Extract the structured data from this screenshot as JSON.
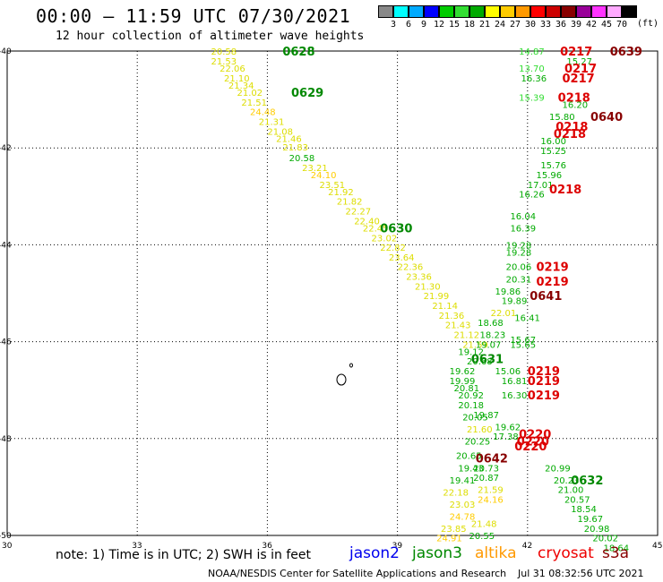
{
  "header": {
    "title": "00:00 – 11:59 UTC 07/30/2021",
    "subtitle": "12 hour collection of altimeter wave heights"
  },
  "colorbar": {
    "unit": "(ft)",
    "ticks": [
      "3",
      "6",
      "9",
      "12",
      "15",
      "18",
      "21",
      "24",
      "27",
      "30",
      "33",
      "36",
      "39",
      "42",
      "45",
      "70"
    ],
    "colors": [
      "#888888",
      "#00ffff",
      "#00aaff",
      "#0000ff",
      "#00cc00",
      "#33dd33",
      "#00aa00",
      "#ffff00",
      "#ffcc00",
      "#ff9900",
      "#ff0000",
      "#cc0000",
      "#880000",
      "#990099",
      "#ff33ff",
      "#ffaaff",
      "#000000"
    ]
  },
  "map": {
    "lon_range": [
      30,
      45
    ],
    "lat_range": [
      -50,
      -40
    ],
    "x_ticks": [
      "30",
      "33",
      "36",
      "39",
      "42",
      "45"
    ],
    "y_ticks": [
      "-40",
      "-42",
      "-44",
      "-46",
      "-48",
      "-50"
    ]
  },
  "chart_data": {
    "type": "scatter",
    "track_labels": [
      {
        "text": "0628",
        "lon": 36.35,
        "lat": -40.0,
        "color": "#008800"
      },
      {
        "text": "0629",
        "lon": 36.55,
        "lat": -40.85,
        "color": "#008800"
      },
      {
        "text": "0630",
        "lon": 38.6,
        "lat": -43.65,
        "color": "#008800"
      },
      {
        "text": "0631",
        "lon": 40.7,
        "lat": -46.35,
        "color": "#008800"
      },
      {
        "text": "0632",
        "lon": 43.0,
        "lat": -48.85,
        "color": "#008800"
      },
      {
        "text": "0639",
        "lon": 43.9,
        "lat": -40.0,
        "color": "#880000"
      },
      {
        "text": "0640",
        "lon": 43.45,
        "lat": -41.35,
        "color": "#880000"
      },
      {
        "text": "0641",
        "lon": 42.05,
        "lat": -45.05,
        "color": "#880000"
      },
      {
        "text": "0642",
        "lon": 40.8,
        "lat": -48.4,
        "color": "#880000"
      },
      {
        "text": "0217",
        "lon": 42.75,
        "lat": -40.0,
        "color": "#dd0000"
      },
      {
        "text": "0217",
        "lon": 42.85,
        "lat": -40.35,
        "color": "#dd0000"
      },
      {
        "text": "0217",
        "lon": 42.8,
        "lat": -40.55,
        "color": "#dd0000"
      },
      {
        "text": "0218",
        "lon": 42.7,
        "lat": -40.95,
        "color": "#dd0000"
      },
      {
        "text": "0218",
        "lon": 42.65,
        "lat": -41.55,
        "color": "#dd0000"
      },
      {
        "text": "0218",
        "lon": 42.6,
        "lat": -41.7,
        "color": "#dd0000"
      },
      {
        "text": "0218",
        "lon": 42.5,
        "lat": -42.85,
        "color": "#dd0000"
      },
      {
        "text": "0219",
        "lon": 42.2,
        "lat": -44.45,
        "color": "#dd0000"
      },
      {
        "text": "0219",
        "lon": 42.2,
        "lat": -44.75,
        "color": "#dd0000"
      },
      {
        "text": "0219",
        "lon": 42.0,
        "lat": -46.6,
        "color": "#dd0000"
      },
      {
        "text": "0219",
        "lon": 42.0,
        "lat": -46.8,
        "color": "#dd0000"
      },
      {
        "text": "0219",
        "lon": 42.0,
        "lat": -47.1,
        "color": "#dd0000"
      },
      {
        "text": "0220",
        "lon": 41.8,
        "lat": -47.9,
        "color": "#dd0000"
      },
      {
        "text": "0220",
        "lon": 41.75,
        "lat": -48.05,
        "color": "#dd0000"
      },
      {
        "text": "0220",
        "lon": 41.7,
        "lat": -48.15,
        "color": "#dd0000"
      }
    ],
    "wave_labels": [
      {
        "text": "20.58",
        "lon": 34.7,
        "lat": -40.0,
        "color": "#dddd00"
      },
      {
        "text": "21.53",
        "lon": 34.7,
        "lat": -40.2,
        "color": "#dddd00"
      },
      {
        "text": "22.06",
        "lon": 34.9,
        "lat": -40.35,
        "color": "#dddd00"
      },
      {
        "text": "21.10",
        "lon": 35.0,
        "lat": -40.55,
        "color": "#dddd00"
      },
      {
        "text": "21.34",
        "lon": 35.1,
        "lat": -40.7,
        "color": "#dddd00"
      },
      {
        "text": "21.02",
        "lon": 35.3,
        "lat": -40.85,
        "color": "#dddd00"
      },
      {
        "text": "21.51",
        "lon": 35.4,
        "lat": -41.05,
        "color": "#dddd00"
      },
      {
        "text": "24.48",
        "lon": 35.6,
        "lat": -41.25,
        "color": "#ffcc00"
      },
      {
        "text": "21.31",
        "lon": 35.8,
        "lat": -41.45,
        "color": "#dddd00"
      },
      {
        "text": "21.08",
        "lon": 36.0,
        "lat": -41.65,
        "color": "#dddd00"
      },
      {
        "text": "21.46",
        "lon": 36.2,
        "lat": -41.8,
        "color": "#dddd00"
      },
      {
        "text": "21.83",
        "lon": 36.35,
        "lat": -41.98,
        "color": "#dddd00"
      },
      {
        "text": "20.58",
        "lon": 36.5,
        "lat": -42.2,
        "color": "#00aa00"
      },
      {
        "text": "23.21",
        "lon": 36.8,
        "lat": -42.4,
        "color": "#dddd00"
      },
      {
        "text": "24.10",
        "lon": 37.0,
        "lat": -42.55,
        "color": "#ffcc00"
      },
      {
        "text": "23.51",
        "lon": 37.2,
        "lat": -42.75,
        "color": "#dddd00"
      },
      {
        "text": "21.92",
        "lon": 37.4,
        "lat": -42.9,
        "color": "#dddd00"
      },
      {
        "text": "21.82",
        "lon": 37.6,
        "lat": -43.1,
        "color": "#dddd00"
      },
      {
        "text": "22.27",
        "lon": 37.8,
        "lat": -43.3,
        "color": "#dddd00"
      },
      {
        "text": "22.40",
        "lon": 38.0,
        "lat": -43.5,
        "color": "#dddd00"
      },
      {
        "text": "22.45",
        "lon": 38.2,
        "lat": -43.65,
        "color": "#dddd00"
      },
      {
        "text": "23.02",
        "lon": 38.4,
        "lat": -43.85,
        "color": "#dddd00"
      },
      {
        "text": "22.82",
        "lon": 38.6,
        "lat": -44.05,
        "color": "#dddd00"
      },
      {
        "text": "23.64",
        "lon": 38.8,
        "lat": -44.25,
        "color": "#dddd00"
      },
      {
        "text": "22.36",
        "lon": 39.0,
        "lat": -44.45,
        "color": "#dddd00"
      },
      {
        "text": "23.36",
        "lon": 39.2,
        "lat": -44.65,
        "color": "#dddd00"
      },
      {
        "text": "21.30",
        "lon": 39.4,
        "lat": -44.85,
        "color": "#dddd00"
      },
      {
        "text": "21.99",
        "lon": 39.6,
        "lat": -45.05,
        "color": "#dddd00"
      },
      {
        "text": "21.14",
        "lon": 39.8,
        "lat": -45.25,
        "color": "#dddd00"
      },
      {
        "text": "21.36",
        "lon": 39.95,
        "lat": -45.45,
        "color": "#dddd00"
      },
      {
        "text": "21.43",
        "lon": 40.1,
        "lat": -45.65,
        "color": "#dddd00"
      },
      {
        "text": "21.12",
        "lon": 40.3,
        "lat": -45.85,
        "color": "#dddd00"
      },
      {
        "text": "21.59",
        "lon": 40.5,
        "lat": -46.05,
        "color": "#dddd00"
      },
      {
        "text": "19.12",
        "lon": 40.4,
        "lat": -46.2,
        "color": "#00aa00"
      },
      {
        "text": "20.68",
        "lon": 40.6,
        "lat": -46.4,
        "color": "#00aa00"
      },
      {
        "text": "19.62",
        "lon": 40.2,
        "lat": -46.6,
        "color": "#00aa00"
      },
      {
        "text": "19.99",
        "lon": 40.2,
        "lat": -46.8,
        "color": "#00aa00"
      },
      {
        "text": "20.81",
        "lon": 40.3,
        "lat": -46.95,
        "color": "#00aa00"
      },
      {
        "text": "20.92",
        "lon": 40.4,
        "lat": -47.1,
        "color": "#00aa00"
      },
      {
        "text": "20.18",
        "lon": 40.4,
        "lat": -47.3,
        "color": "#00aa00"
      },
      {
        "text": "20.05",
        "lon": 40.5,
        "lat": -47.55,
        "color": "#00aa00"
      },
      {
        "text": "21.60",
        "lon": 40.6,
        "lat": -47.8,
        "color": "#dddd00"
      },
      {
        "text": "20.25",
        "lon": 40.55,
        "lat": -48.05,
        "color": "#00aa00"
      },
      {
        "text": "20.65",
        "lon": 40.35,
        "lat": -48.35,
        "color": "#00aa00"
      },
      {
        "text": "19.43",
        "lon": 40.4,
        "lat": -48.6,
        "color": "#00aa00"
      },
      {
        "text": "19.41",
        "lon": 40.2,
        "lat": -48.85,
        "color": "#00aa00"
      },
      {
        "text": "22.18",
        "lon": 40.05,
        "lat": -49.1,
        "color": "#dddd00"
      },
      {
        "text": "23.03",
        "lon": 40.2,
        "lat": -49.35,
        "color": "#dddd00"
      },
      {
        "text": "24.78",
        "lon": 40.2,
        "lat": -49.6,
        "color": "#ffcc00"
      },
      {
        "text": "23.85",
        "lon": 40.0,
        "lat": -49.85,
        "color": "#dddd00"
      },
      {
        "text": "24.91",
        "lon": 39.9,
        "lat": -50.05,
        "color": "#ffcc00"
      },
      {
        "text": "14.87",
        "lon": 41.8,
        "lat": -40.0,
        "color": "#33dd33"
      },
      {
        "text": "15.27",
        "lon": 42.9,
        "lat": -40.2,
        "color": "#00aa00"
      },
      {
        "text": "13.70",
        "lon": 41.8,
        "lat": -40.35,
        "color": "#33dd33"
      },
      {
        "text": "16.36",
        "lon": 41.85,
        "lat": -40.55,
        "color": "#00aa00"
      },
      {
        "text": "15.39",
        "lon": 41.8,
        "lat": -40.95,
        "color": "#33dd33"
      },
      {
        "text": "16.20",
        "lon": 42.8,
        "lat": -41.1,
        "color": "#00aa00"
      },
      {
        "text": "15.80",
        "lon": 42.5,
        "lat": -41.35,
        "color": "#00aa00"
      },
      {
        "text": "16.00",
        "lon": 42.3,
        "lat": -41.85,
        "color": "#00aa00"
      },
      {
        "text": "15.25",
        "lon": 42.3,
        "lat": -42.05,
        "color": "#00aa00"
      },
      {
        "text": "15.76",
        "lon": 42.3,
        "lat": -42.35,
        "color": "#00aa00"
      },
      {
        "text": "15.96",
        "lon": 42.2,
        "lat": -42.55,
        "color": "#00aa00"
      },
      {
        "text": "17.01",
        "lon": 42.0,
        "lat": -42.75,
        "color": "#00aa00"
      },
      {
        "text": "16.26",
        "lon": 41.8,
        "lat": -42.95,
        "color": "#00aa00"
      },
      {
        "text": "16.04",
        "lon": 41.6,
        "lat": -43.4,
        "color": "#00aa00"
      },
      {
        "text": "16.39",
        "lon": 41.6,
        "lat": -43.65,
        "color": "#00aa00"
      },
      {
        "text": "19.28",
        "lon": 41.5,
        "lat": -44.0,
        "color": "#00aa00"
      },
      {
        "text": "19.28",
        "lon": 41.5,
        "lat": -44.15,
        "color": "#00aa00"
      },
      {
        "text": "20.06",
        "lon": 41.5,
        "lat": -44.45,
        "color": "#00aa00"
      },
      {
        "text": "20.31",
        "lon": 41.5,
        "lat": -44.7,
        "color": "#00aa00"
      },
      {
        "text": "19.86",
        "lon": 41.25,
        "lat": -44.95,
        "color": "#00aa00"
      },
      {
        "text": "19.89",
        "lon": 41.4,
        "lat": -45.15,
        "color": "#00aa00"
      },
      {
        "text": "22.01",
        "lon": 41.15,
        "lat": -45.4,
        "color": "#dddd00"
      },
      {
        "text": "16.41",
        "lon": 41.7,
        "lat": -45.5,
        "color": "#00aa00"
      },
      {
        "text": "18.68",
        "lon": 40.85,
        "lat": -45.6,
        "color": "#00aa00"
      },
      {
        "text": "18.23",
        "lon": 40.9,
        "lat": -45.85,
        "color": "#00aa00"
      },
      {
        "text": "15.67",
        "lon": 41.6,
        "lat": -45.95,
        "color": "#00aa00"
      },
      {
        "text": "19.07",
        "lon": 40.8,
        "lat": -46.05,
        "color": "#00aa00"
      },
      {
        "text": "15.65",
        "lon": 41.6,
        "lat": -46.05,
        "color": "#00aa00"
      },
      {
        "text": "15.06",
        "lon": 41.25,
        "lat": -46.6,
        "color": "#00aa00"
      },
      {
        "text": "16.81",
        "lon": 41.4,
        "lat": -46.8,
        "color": "#00aa00"
      },
      {
        "text": "16.30",
        "lon": 41.4,
        "lat": -47.1,
        "color": "#00aa00"
      },
      {
        "text": "19.87",
        "lon": 40.75,
        "lat": -47.5,
        "color": "#00aa00"
      },
      {
        "text": "19.62",
        "lon": 41.25,
        "lat": -47.75,
        "color": "#00aa00"
      },
      {
        "text": "17.38",
        "lon": 41.2,
        "lat": -47.95,
        "color": "#00aa00"
      },
      {
        "text": "20.73",
        "lon": 40.75,
        "lat": -48.6,
        "color": "#00aa00"
      },
      {
        "text": "20.87",
        "lon": 40.75,
        "lat": -48.8,
        "color": "#00aa00"
      },
      {
        "text": "21.59",
        "lon": 40.85,
        "lat": -49.05,
        "color": "#dddd00"
      },
      {
        "text": "24.16",
        "lon": 40.85,
        "lat": -49.25,
        "color": "#ffcc00"
      },
      {
        "text": "21.48",
        "lon": 40.7,
        "lat": -49.75,
        "color": "#dddd00"
      },
      {
        "text": "20.55",
        "lon": 40.65,
        "lat": -50.0,
        "color": "#00aa00"
      },
      {
        "text": "20.99",
        "lon": 42.4,
        "lat": -48.6,
        "color": "#00aa00"
      },
      {
        "text": "20.23",
        "lon": 42.6,
        "lat": -48.85,
        "color": "#00aa00"
      },
      {
        "text": "21.00",
        "lon": 42.7,
        "lat": -49.05,
        "color": "#00aa00"
      },
      {
        "text": "20.57",
        "lon": 42.85,
        "lat": -49.25,
        "color": "#00aa00"
      },
      {
        "text": "18.54",
        "lon": 43.0,
        "lat": -49.45,
        "color": "#00aa00"
      },
      {
        "text": "19.67",
        "lon": 43.15,
        "lat": -49.65,
        "color": "#00aa00"
      },
      {
        "text": "20.98",
        "lon": 43.3,
        "lat": -49.85,
        "color": "#00aa00"
      },
      {
        "text": "20.02",
        "lon": 43.5,
        "lat": -50.05,
        "color": "#00aa00"
      },
      {
        "text": "18.64",
        "lon": 43.75,
        "lat": -50.25,
        "color": "#00aa00"
      }
    ]
  },
  "footer": {
    "note": "note: 1) Time is in UTC; 2) SWH is in feet",
    "legend": [
      {
        "name": "jason2",
        "color": "#0000ee"
      },
      {
        "name": "jason3",
        "color": "#008800"
      },
      {
        "name": "altika",
        "color": "#ff9900"
      },
      {
        "name": "cryosat",
        "color": "#ee0000"
      },
      {
        "name": "s3a",
        "color": "#880000"
      }
    ],
    "credit": "NOAA/NESDIS Center for Satellite Applications and Research",
    "timestamp": "Jul 31 08:32:56 UTC 2021"
  }
}
